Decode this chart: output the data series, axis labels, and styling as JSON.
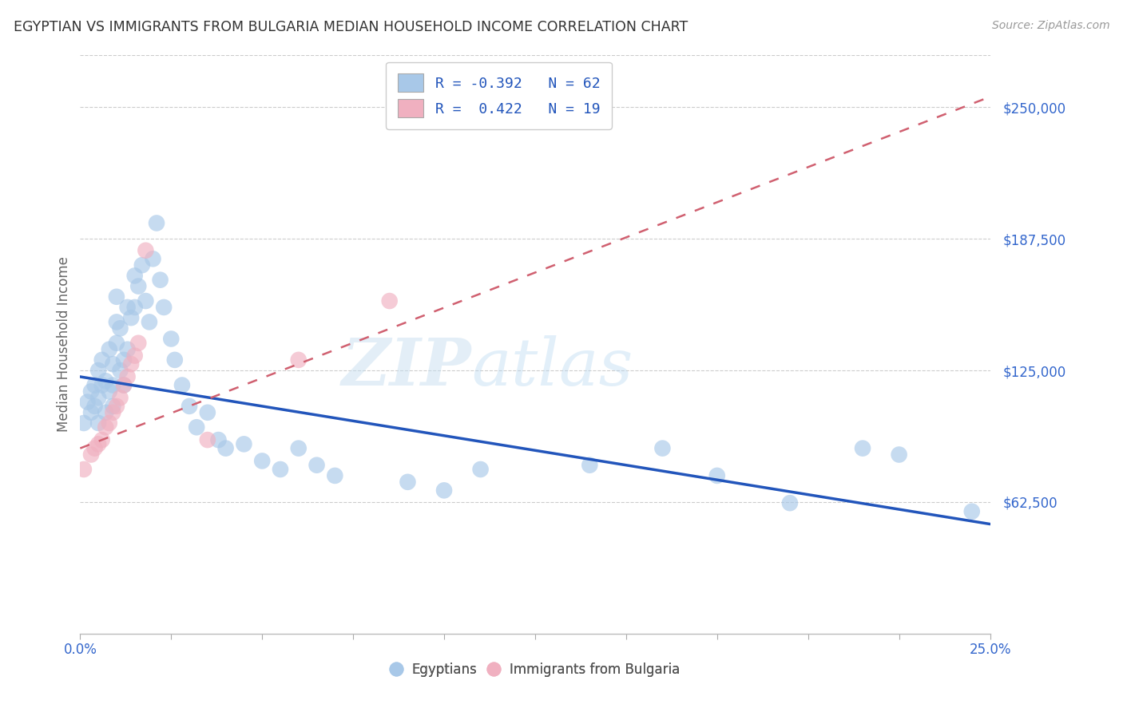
{
  "title": "EGYPTIAN VS IMMIGRANTS FROM BULGARIA MEDIAN HOUSEHOLD INCOME CORRELATION CHART",
  "source": "Source: ZipAtlas.com",
  "ylabel": "Median Household Income",
  "ytick_labels": [
    "$62,500",
    "$125,000",
    "$187,500",
    "$250,000"
  ],
  "ytick_values": [
    62500,
    125000,
    187500,
    250000
  ],
  "ymin": 0,
  "ymax": 275000,
  "xmin": 0.0,
  "xmax": 0.25,
  "watermark_text": "ZIP",
  "watermark_text2": "atlas",
  "blue_color": "#a8c8e8",
  "pink_color": "#f0b0c0",
  "blue_line_color": "#2255bb",
  "pink_line_color": "#d06070",
  "legend_label1": "Egyptians",
  "legend_label2": "Immigrants from Bulgaria",
  "blue_line_x": [
    0.0,
    0.25
  ],
  "blue_line_y": [
    122000,
    52000
  ],
  "pink_line_x": [
    0.0,
    0.25
  ],
  "pink_line_y": [
    88000,
    255000
  ],
  "egyptians_x": [
    0.001,
    0.002,
    0.003,
    0.003,
    0.004,
    0.004,
    0.005,
    0.005,
    0.005,
    0.006,
    0.006,
    0.007,
    0.007,
    0.008,
    0.008,
    0.009,
    0.009,
    0.009,
    0.01,
    0.01,
    0.01,
    0.011,
    0.011,
    0.012,
    0.012,
    0.013,
    0.013,
    0.014,
    0.015,
    0.015,
    0.016,
    0.017,
    0.018,
    0.019,
    0.02,
    0.021,
    0.022,
    0.023,
    0.025,
    0.026,
    0.028,
    0.03,
    0.032,
    0.035,
    0.038,
    0.04,
    0.045,
    0.05,
    0.055,
    0.06,
    0.065,
    0.07,
    0.09,
    0.1,
    0.11,
    0.14,
    0.16,
    0.175,
    0.195,
    0.215,
    0.225,
    0.245
  ],
  "egyptians_y": [
    100000,
    110000,
    115000,
    105000,
    118000,
    108000,
    125000,
    112000,
    100000,
    130000,
    118000,
    120000,
    105000,
    135000,
    115000,
    128000,
    118000,
    108000,
    160000,
    148000,
    138000,
    145000,
    125000,
    130000,
    118000,
    155000,
    135000,
    150000,
    170000,
    155000,
    165000,
    175000,
    158000,
    148000,
    178000,
    195000,
    168000,
    155000,
    140000,
    130000,
    118000,
    108000,
    98000,
    105000,
    92000,
    88000,
    90000,
    82000,
    78000,
    88000,
    80000,
    75000,
    72000,
    68000,
    78000,
    80000,
    88000,
    75000,
    62000,
    88000,
    85000,
    58000
  ],
  "bulgaria_x": [
    0.001,
    0.003,
    0.004,
    0.005,
    0.006,
    0.007,
    0.008,
    0.009,
    0.01,
    0.011,
    0.012,
    0.013,
    0.014,
    0.015,
    0.016,
    0.018,
    0.035,
    0.06,
    0.085
  ],
  "bulgaria_y": [
    78000,
    85000,
    88000,
    90000,
    92000,
    98000,
    100000,
    105000,
    108000,
    112000,
    118000,
    122000,
    128000,
    132000,
    138000,
    182000,
    92000,
    130000,
    158000
  ]
}
